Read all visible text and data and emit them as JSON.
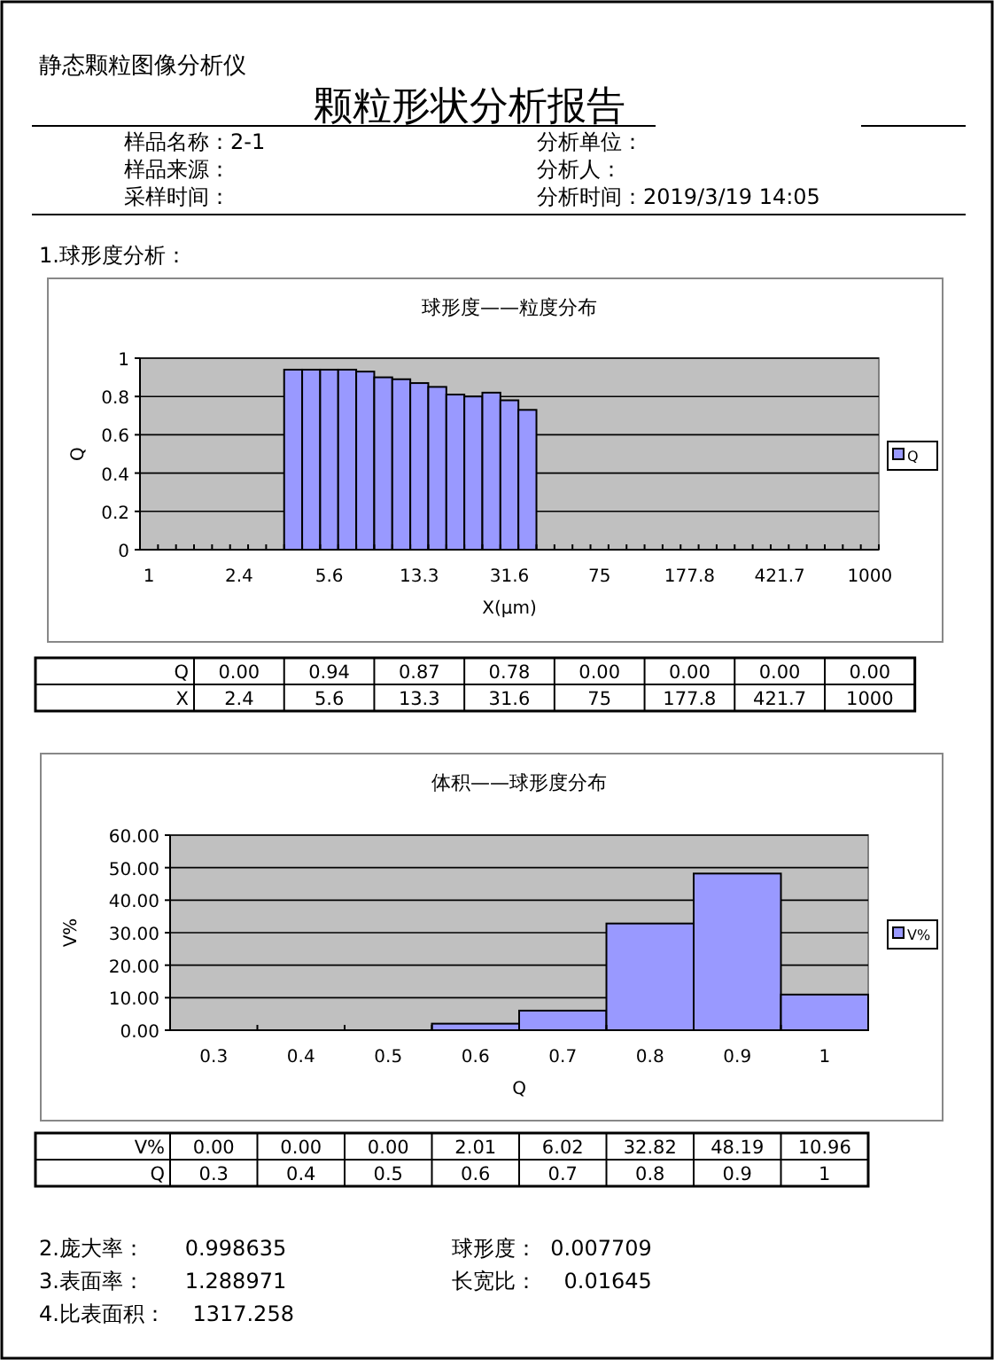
{
  "chart_data": [
    {
      "type": "other",
      "title": "颗粒形状分析报告",
      "subtitle": "静态颗粒图像分析仪",
      "annotations": [
        "样品名称：2-1",
        "分析单位：",
        "样品来源：",
        "分析人：",
        "采样时间：",
        "分析时间：2019/3/19 14:05",
        "1.球形度分析："
      ]
    },
    {
      "type": "bar",
      "title": "球形度——粒度分布",
      "xlabel": "X(μm)",
      "ylabel": "Q",
      "annotations": [
        "X"
      ],
      "categories": [
        "1",
        null,
        null,
        null,
        null,
        "2.4",
        null,
        null,
        null,
        null,
        "5.6",
        null,
        null,
        null,
        null,
        "13.3",
        null,
        null,
        null,
        null,
        "31.6",
        null,
        null,
        null,
        null,
        "75",
        null,
        null,
        null,
        null,
        "177.8",
        null,
        null,
        null,
        null,
        "421.7",
        null,
        null,
        null,
        null,
        "1000"
      ],
      "series": [
        {
          "name": "Q",
          "color": "#9999ff",
          "values": [
            0,
            0,
            0,
            0,
            0,
            0,
            0,
            0,
            0.94,
            0.94,
            0.94,
            0.94,
            0.93,
            0.9,
            0.89,
            0.87,
            0.85,
            0.81,
            0.8,
            0.82,
            0.78,
            0.73,
            0,
            0,
            0,
            0,
            0,
            0,
            0,
            0,
            0,
            0,
            0,
            0,
            0,
            0,
            0,
            0,
            0,
            0,
            0
          ],
          "value_labels": [
            null,
            null,
            null,
            null,
            null,
            "0.00",
            null,
            null,
            null,
            null,
            "0.94",
            null,
            null,
            null,
            null,
            "0.87",
            null,
            null,
            null,
            null,
            "0.78",
            null,
            null,
            null,
            null,
            "0.00",
            null,
            null,
            null,
            null,
            "0.00",
            null,
            null,
            null,
            null,
            "0.00",
            null,
            null,
            null,
            null,
            "0.00"
          ]
        }
      ],
      "ylim": [
        0,
        1
      ],
      "yticks": [
        0,
        0.2,
        0.4,
        0.6,
        0.8,
        1
      ],
      "grid": "y",
      "legend": "right"
    },
    {
      "type": "bar",
      "title": "体积——球形度分布",
      "xlabel": "Q",
      "ylabel": "V%",
      "annotations": [
        "Q"
      ],
      "categories": [
        "0.3",
        "0.4",
        "0.5",
        "0.6",
        "0.7",
        "0.8",
        "0.9",
        "1"
      ],
      "series": [
        {
          "name": "V%",
          "color": "#9999ff",
          "values": [
            0,
            0,
            0,
            2.01,
            6.02,
            32.82,
            48.19,
            10.96
          ],
          "value_labels": [
            "0.00",
            "0.00",
            "0.00",
            "2.01",
            "6.02",
            "32.82",
            "48.19",
            "10.96"
          ]
        }
      ],
      "ylim": [
        0,
        60
      ],
      "yticks": [
        {
          "value": 0,
          "label": "0.00"
        },
        {
          "value": 10,
          "label": "10.00"
        },
        {
          "value": 20,
          "label": "20.00"
        },
        {
          "value": 30,
          "label": "30.00"
        },
        {
          "value": 40,
          "label": "40.00"
        },
        {
          "value": 50,
          "label": "50.00"
        },
        {
          "value": 60,
          "label": "60.00"
        }
      ],
      "grid": "y",
      "legend": "right"
    },
    {
      "type": "other",
      "annotations": [
        "2.庞大率：      0.998635",
        "球形度：  0.007709",
        "3.表面率：      1.288971",
        "长宽比：    0.01645",
        "4.比表面积：    1317.258"
      ]
    }
  ]
}
